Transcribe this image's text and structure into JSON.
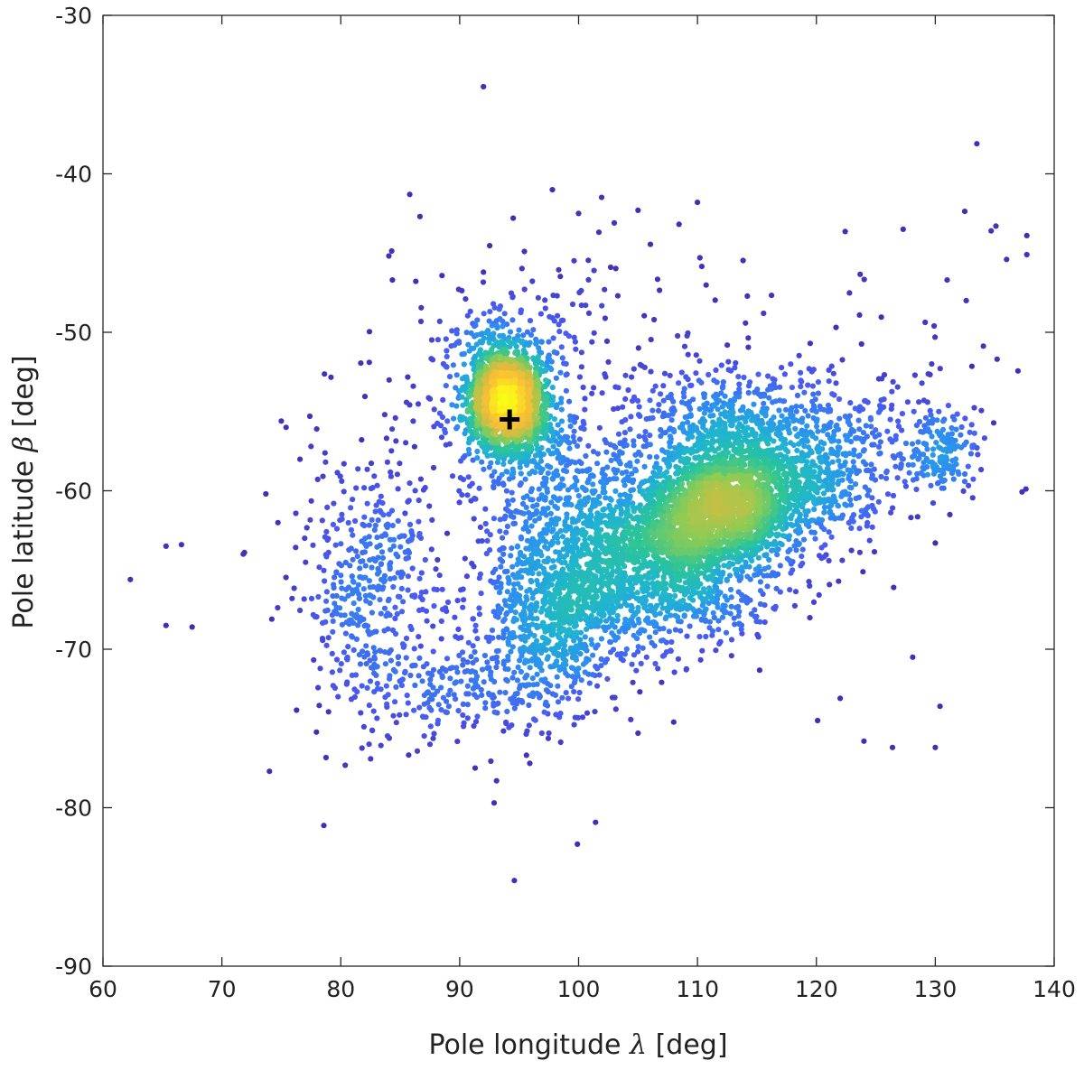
{
  "chart_data": {
    "type": "scatter",
    "title": "",
    "xlabel": {
      "prefix": "Pole longitude ",
      "symbol": "λ",
      "suffix": " [deg]"
    },
    "ylabel": {
      "prefix": "Pole latitude ",
      "symbol": "β",
      "suffix": " [deg]"
    },
    "xlim": [
      60,
      140
    ],
    "ylim": [
      -90,
      -30
    ],
    "xticks": [
      60,
      70,
      80,
      90,
      100,
      110,
      120,
      130,
      140
    ],
    "yticks": [
      -90,
      -80,
      -70,
      -60,
      -50,
      -40,
      -30
    ],
    "grid": false,
    "legend": "none",
    "colormap": [
      "#3e26a8",
      "#4a5af0",
      "#2d8ef0",
      "#1fb3d2",
      "#2cc596",
      "#8fcb54",
      "#e7b93c",
      "#fcc532",
      "#f9fb15"
    ],
    "point_color_low": "#3e26a8",
    "marker": {
      "x": 94.2,
      "y": -55.5,
      "symbol": "plus",
      "color": "#000000"
    },
    "clusters": [
      {
        "name": "primary-peak",
        "center": [
          94.0,
          -54.3
        ],
        "sd": [
          1.6,
          1.8
        ],
        "count": 1400,
        "corr": 0.0
      },
      {
        "name": "primary-halo",
        "center": [
          93.8,
          -53.8
        ],
        "sd": [
          2.6,
          3.0
        ],
        "count": 500,
        "corr": 0.0
      },
      {
        "name": "main-elongated",
        "center": [
          112.0,
          -61.0
        ],
        "sd": [
          7.5,
          3.2
        ],
        "count": 2600,
        "corr": 0.55
      },
      {
        "name": "main-core",
        "center": [
          111.5,
          -61.2
        ],
        "sd": [
          3.5,
          2.0
        ],
        "count": 900,
        "corr": 0.3
      },
      {
        "name": "east-tail",
        "center": [
          130.5,
          -57.5
        ],
        "sd": [
          1.5,
          1.2
        ],
        "count": 140,
        "corr": 0.0
      },
      {
        "name": "upper-arm",
        "center": [
          112.0,
          -56.0
        ],
        "sd": [
          4.0,
          2.0
        ],
        "count": 400,
        "corr": 0.0
      },
      {
        "name": "west-lobe",
        "center": [
          82.0,
          -66.0
        ],
        "sd": [
          3.0,
          4.5
        ],
        "count": 450,
        "corr": 0.0
      },
      {
        "name": "south-west-lobe",
        "center": [
          90.0,
          -72.5
        ],
        "sd": [
          4.0,
          1.5
        ],
        "count": 200,
        "corr": 0.0
      },
      {
        "name": "south-lobe",
        "center": [
          98.0,
          -69.0
        ],
        "sd": [
          3.0,
          2.5
        ],
        "count": 450,
        "corr": 0.0
      },
      {
        "name": "bridge",
        "center": [
          99.0,
          -63.0
        ],
        "sd": [
          4.0,
          4.0
        ],
        "count": 700,
        "corr": 0.0
      },
      {
        "name": "lower-main",
        "center": [
          107.0,
          -66.5
        ],
        "sd": [
          5.0,
          2.0
        ],
        "count": 500,
        "corr": 0.0
      },
      {
        "name": "north-scatter",
        "center": [
          104.0,
          -50.0
        ],
        "sd": [
          10.0,
          4.0
        ],
        "count": 120,
        "corr": 0.0
      }
    ],
    "outliers": [
      [
        92.0,
        -34.5
      ],
      [
        97.8,
        -41.0
      ],
      [
        85.8,
        -41.3
      ],
      [
        100.0,
        -42.5
      ],
      [
        94.5,
        -42.8
      ],
      [
        105.0,
        -42.3
      ],
      [
        103.0,
        -43.1
      ],
      [
        110.0,
        -41.8
      ],
      [
        110.2,
        -45.3
      ],
      [
        133.5,
        -38.1
      ],
      [
        135.1,
        -43.3
      ],
      [
        134.7,
        -43.6
      ],
      [
        137.7,
        -43.9
      ],
      [
        136.0,
        -45.4
      ],
      [
        137.7,
        -45.1
      ],
      [
        127.3,
        -43.5
      ],
      [
        132.6,
        -48.0
      ],
      [
        131.0,
        -46.7
      ],
      [
        135.2,
        -51.7
      ],
      [
        129.9,
        -49.6
      ],
      [
        101.3,
        -46.1
      ],
      [
        102.7,
        -45.9
      ],
      [
        62.3,
        -65.6
      ],
      [
        65.3,
        -63.5
      ],
      [
        66.6,
        -63.4
      ],
      [
        65.3,
        -68.5
      ],
      [
        67.5,
        -68.6
      ],
      [
        71.9,
        -63.9
      ],
      [
        71.8,
        -64.0
      ],
      [
        73.7,
        -60.2
      ],
      [
        74.2,
        -68.1
      ],
      [
        75.0,
        -55.6
      ],
      [
        75.4,
        -56.0
      ],
      [
        75.9,
        -66.8
      ],
      [
        77.4,
        -55.3
      ],
      [
        77.5,
        -57.2
      ],
      [
        82.4,
        -51.9
      ],
      [
        91.3,
        -77.5
      ],
      [
        93.1,
        -78.3
      ],
      [
        92.9,
        -79.7
      ],
      [
        95.9,
        -77.2
      ],
      [
        99.9,
        -82.3
      ],
      [
        94.6,
        -84.6
      ],
      [
        105.0,
        -75.3
      ],
      [
        124.0,
        -75.8
      ],
      [
        126.4,
        -76.2
      ],
      [
        130.0,
        -76.2
      ],
      [
        130.4,
        -73.6
      ],
      [
        120.1,
        -74.5
      ],
      [
        122.0,
        -73.1
      ],
      [
        128.1,
        -70.5
      ],
      [
        126.5,
        -66.1
      ],
      [
        128.2,
        -55.0
      ],
      [
        129.7,
        -52.0
      ],
      [
        130.3,
        -55.0
      ],
      [
        130.0,
        -63.3
      ],
      [
        108.0,
        -74.6
      ],
      [
        97.5,
        -75.3
      ],
      [
        87.5,
        -76.0
      ]
    ]
  }
}
